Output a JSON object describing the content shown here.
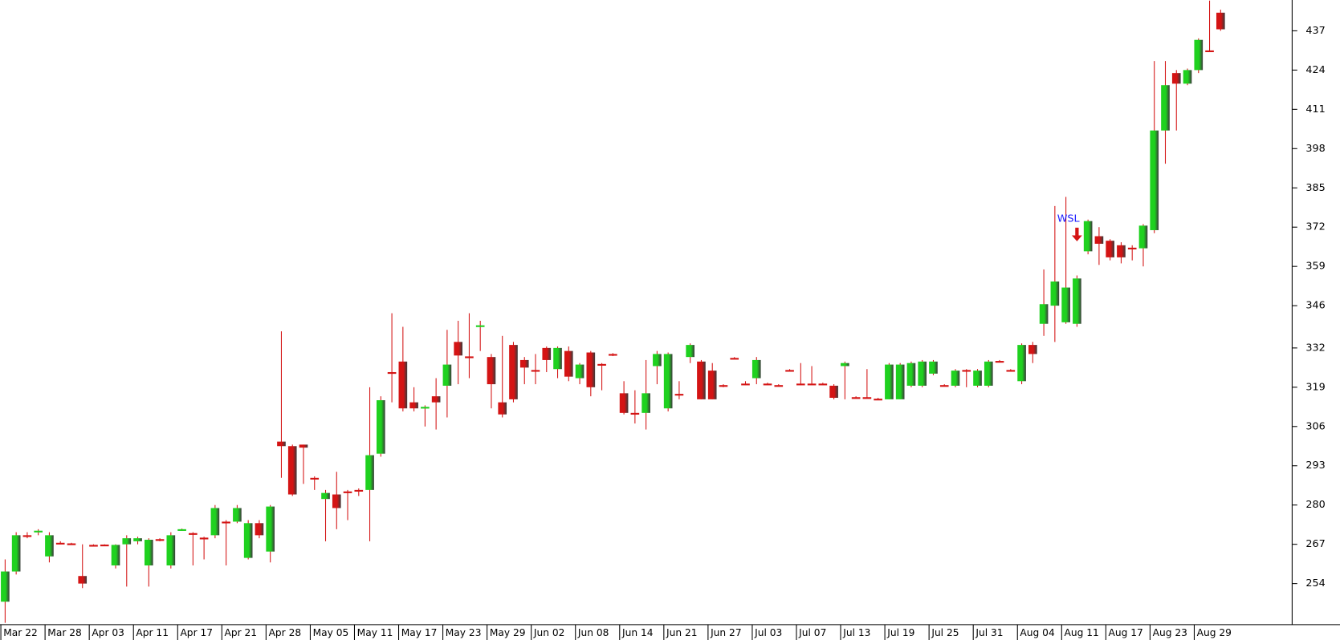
{
  "chart_data": {
    "type": "candlestick",
    "annotations": [
      {
        "text": "WSL",
        "index": 97
      }
    ],
    "up_color": "#1fd11f",
    "down_color": "#d41414",
    "annotation_color": "#1a1aff",
    "ylim": [
      240.4,
      447.2
    ],
    "yticks": [
      254,
      267,
      280,
      293,
      306,
      319,
      332,
      346,
      359,
      372,
      385,
      398,
      411,
      424,
      437
    ],
    "categories": [
      "Mar 22",
      null,
      null,
      null,
      "Mar 28",
      null,
      null,
      null,
      "Apr 03",
      null,
      null,
      null,
      "Apr 11",
      null,
      null,
      null,
      "Apr 17",
      null,
      null,
      null,
      "Apr 21",
      null,
      null,
      null,
      "Apr 28",
      null,
      null,
      null,
      "May 05",
      null,
      null,
      null,
      "May 11",
      null,
      null,
      null,
      "May 17",
      null,
      null,
      null,
      "May 23",
      null,
      null,
      null,
      "May 29",
      null,
      null,
      null,
      "Jun 02",
      null,
      null,
      null,
      "Jun 08",
      null,
      null,
      null,
      "Jun 14",
      null,
      null,
      null,
      "Jun 21",
      null,
      null,
      null,
      "Jun 27",
      null,
      null,
      null,
      "Jul 03",
      null,
      null,
      null,
      "Jul 07",
      null,
      null,
      null,
      "Jul 13",
      null,
      null,
      null,
      "Jul 19",
      null,
      null,
      null,
      "Jul 25",
      null,
      null,
      null,
      "Jul 31",
      null,
      null,
      null,
      "Aug 04",
      null,
      null,
      null,
      "Aug 11",
      null,
      null,
      null,
      "Aug 17",
      null,
      null,
      null,
      "Aug 23",
      null,
      null,
      null,
      "Aug 29",
      null,
      null
    ],
    "open": [
      248,
      258,
      270,
      271,
      263,
      267.5,
      267.3,
      256.5,
      266.8,
      266.9,
      260,
      267,
      268,
      260,
      268.7,
      260,
      271.7,
      270.7,
      269.2,
      270,
      274.5,
      274.5,
      262.5,
      274,
      264.6,
      301,
      299.5,
      300,
      289,
      282,
      283.5,
      284.5,
      285,
      285,
      297,
      324,
      327.5,
      314,
      312,
      316,
      319.5,
      334,
      329.2,
      339,
      329,
      314,
      333,
      328,
      324.7,
      332,
      325,
      331,
      322,
      330.5,
      326.7,
      330,
      317,
      310.5,
      310.5,
      326,
      312,
      316.8,
      329,
      327.5,
      324.5,
      319.7,
      328.7,
      320.2,
      322,
      320.2,
      319.7,
      324.7,
      320.2,
      320.2,
      320.2,
      319.5,
      326,
      315.7,
      315.7,
      315.2,
      315,
      315,
      319.5,
      319.5,
      323.5,
      319.7,
      319.5,
      324.7,
      319.5,
      319.5,
      327.7,
      324.7,
      321,
      333,
      340,
      346,
      340.5,
      340,
      364,
      369,
      367.5,
      366,
      365.2,
      365,
      371,
      404,
      423,
      419.5,
      424,
      430.5,
      443
    ],
    "high": [
      262,
      271,
      271,
      272,
      271,
      268,
      267.5,
      267,
      267,
      267,
      267,
      270,
      269.5,
      269,
      269,
      271,
      272.2,
      271,
      269.5,
      280,
      275,
      280,
      275,
      275,
      280,
      337.5,
      300,
      300,
      289.5,
      285,
      291,
      285,
      285.5,
      319,
      316,
      343.5,
      339,
      319,
      313,
      322,
      338,
      341,
      343.5,
      341,
      330,
      336,
      334,
      329,
      330,
      332.5,
      332.5,
      332.5,
      327,
      331,
      327,
      330.3,
      321,
      318,
      328,
      331,
      330.5,
      321,
      333.5,
      328,
      327,
      320,
      329,
      321,
      329,
      320.5,
      320,
      325,
      327,
      326,
      320.5,
      320,
      327.5,
      316,
      325,
      315.5,
      327,
      327,
      327.5,
      328,
      328,
      320,
      325,
      325,
      325,
      328,
      328,
      325,
      333.5,
      334,
      358,
      379,
      382,
      356,
      374.5,
      372,
      368,
      367,
      366,
      373,
      427,
      427,
      424,
      424.5,
      434.5,
      447,
      444
    ],
    "low": [
      241,
      257,
      269,
      270,
      261,
      267,
      267,
      252.5,
      266.5,
      266.5,
      259,
      253,
      267,
      253,
      268,
      259,
      271.5,
      260,
      262,
      269,
      260,
      274,
      262,
      269,
      261,
      289,
      283,
      287,
      285,
      268,
      272,
      275,
      283,
      268,
      296,
      314,
      311,
      311,
      306,
      305,
      309,
      320,
      322,
      331,
      312,
      309,
      314,
      320,
      320,
      324,
      322,
      321,
      320,
      316,
      318,
      329.3,
      310,
      307,
      305,
      320,
      311,
      315,
      327,
      315,
      315,
      319,
      328.3,
      319.7,
      320,
      319.7,
      319.2,
      324.3,
      319.7,
      319.7,
      319.7,
      315,
      315,
      315.3,
      315.3,
      314.8,
      315,
      315,
      319,
      319,
      323,
      319.3,
      319,
      319,
      319,
      319,
      327.3,
      324.3,
      320,
      327,
      336,
      334,
      340,
      339,
      363,
      359.5,
      361,
      360,
      361,
      359,
      370,
      393,
      404,
      419,
      423,
      430,
      437
    ],
    "close": [
      258,
      270,
      269.5,
      271.5,
      270,
      267,
      267.1,
      254,
      266.6,
      266.7,
      266.8,
      269,
      269,
      268.5,
      268.5,
      270,
      272,
      270.5,
      269,
      279,
      274,
      279,
      274,
      270,
      279.5,
      299.5,
      283.5,
      299,
      288.5,
      284,
      279,
      284,
      284.5,
      296.5,
      314.7,
      323.5,
      312,
      312,
      312.5,
      314,
      326.5,
      329.5,
      329,
      339.5,
      320,
      310,
      315,
      325.5,
      324.5,
      328,
      332,
      322.5,
      326.5,
      319,
      326.5,
      329.5,
      310.5,
      310,
      317,
      330,
      330,
      316.5,
      333,
      315,
      315,
      319.5,
      328.5,
      320,
      328,
      320,
      319.5,
      324.5,
      320,
      320,
      320,
      315.5,
      327,
      315.5,
      315.5,
      315,
      326.5,
      326.5,
      327,
      327.5,
      327.5,
      319.5,
      324.5,
      324.5,
      324.5,
      327.5,
      327.5,
      324.5,
      333,
      330,
      346.5,
      354,
      352,
      355,
      374,
      366.5,
      362,
      362,
      365,
      372.5,
      404,
      419,
      419.5,
      424,
      434,
      430,
      437.5
    ]
  }
}
